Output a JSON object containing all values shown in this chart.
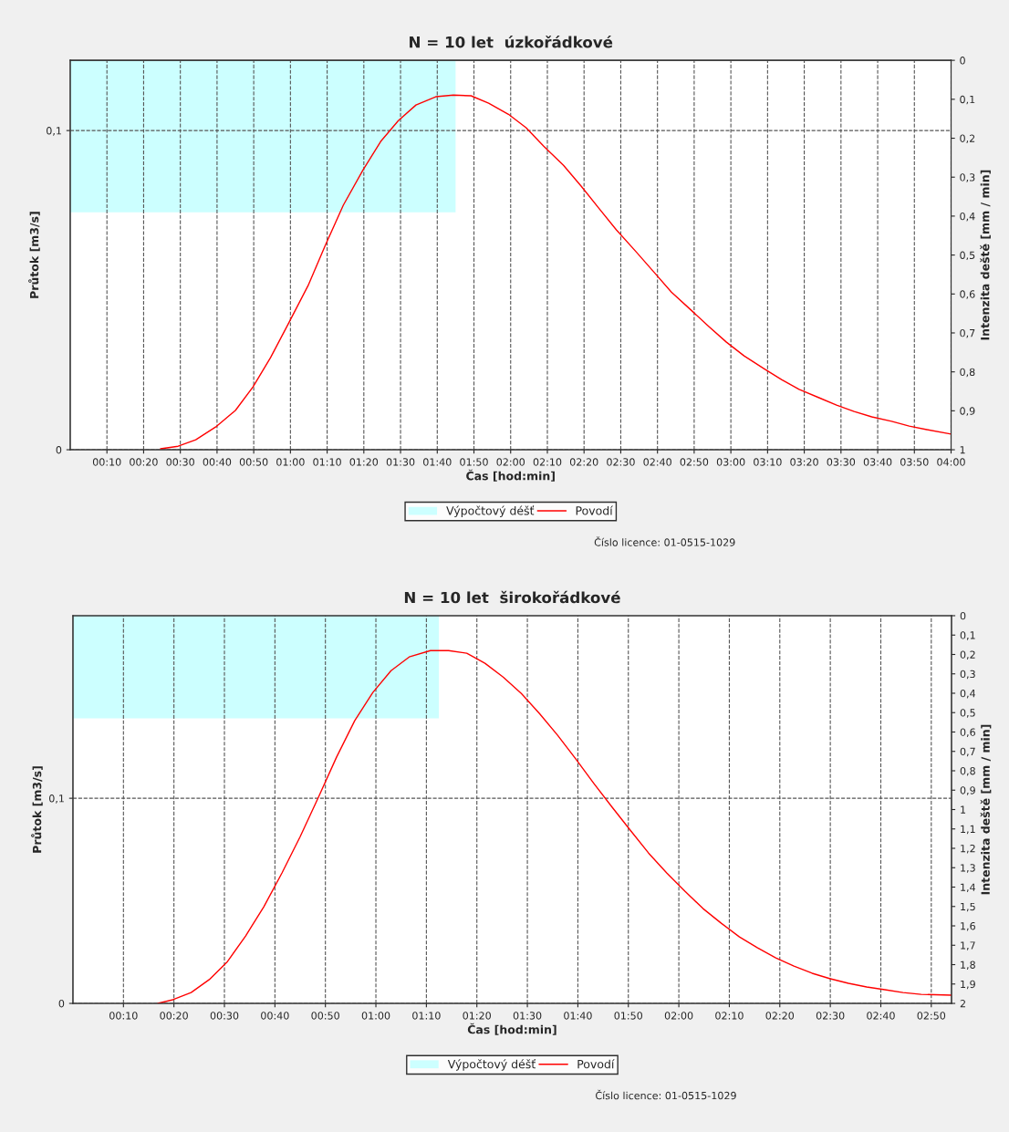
{
  "chart_data": [
    {
      "type": "line",
      "title": "N = 10 let  úzkořádkové",
      "xlabel": "Čas [hod:min]",
      "ylabel": "Průtok [m3/s]",
      "y2label": "Intenzita deště [mm / min]",
      "xlim": [
        0,
        4
      ],
      "ylim": [
        0,
        0.122
      ],
      "y2lim": [
        1,
        0
      ],
      "xticks": [
        {
          "value": 0.1667,
          "label": "00:10"
        },
        {
          "value": 0.3333,
          "label": "00:20"
        },
        {
          "value": 0.5,
          "label": "00:30"
        },
        {
          "value": 0.6667,
          "label": "00:40"
        },
        {
          "value": 0.8333,
          "label": "00:50"
        },
        {
          "value": 1,
          "label": "01:00"
        },
        {
          "value": 1.1667,
          "label": "01:10"
        },
        {
          "value": 1.3333,
          "label": "01:20"
        },
        {
          "value": 1.5,
          "label": "01:30"
        },
        {
          "value": 1.6667,
          "label": "01:40"
        },
        {
          "value": 1.8333,
          "label": "01:50"
        },
        {
          "value": 2,
          "label": "02:00"
        },
        {
          "value": 2.1667,
          "label": "02:10"
        },
        {
          "value": 2.3333,
          "label": "02:20"
        },
        {
          "value": 2.5,
          "label": "02:30"
        },
        {
          "value": 2.6667,
          "label": "02:40"
        },
        {
          "value": 2.8333,
          "label": "02:50"
        },
        {
          "value": 3,
          "label": "03:00"
        },
        {
          "value": 3.1667,
          "label": "03:10"
        },
        {
          "value": 3.3333,
          "label": "03:20"
        },
        {
          "value": 3.5,
          "label": "03:30"
        },
        {
          "value": 3.6667,
          "label": "03:40"
        },
        {
          "value": 3.8333,
          "label": "03:50"
        },
        {
          "value": 4,
          "label": "04:00"
        }
      ],
      "yticks": [
        0,
        {
          "value": 0.1,
          "label": "0,1"
        }
      ],
      "y2ticks": [
        0,
        {
          "value": 0.1,
          "label": "0,1"
        },
        {
          "value": 0.2,
          "label": "0,2"
        },
        {
          "value": 0.3,
          "label": "0,3"
        },
        {
          "value": 0.4,
          "label": "0,4"
        },
        {
          "value": 0.5,
          "label": "0,5"
        },
        {
          "value": 0.6,
          "label": "0,6"
        },
        {
          "value": 0.7,
          "label": "0,7"
        },
        {
          "value": 0.8,
          "label": "0,8"
        },
        {
          "value": 0.9,
          "label": "0,9"
        },
        1
      ],
      "grid": true,
      "legend": "bottom",
      "line_style": "solid",
      "marker": "none",
      "annotations": [
        "Číslo licence: 01-0515-1029"
      ],
      "series": [
        {
          "name": "Výpočtový déšť",
          "type": "area",
          "axis": "y2",
          "color": "#ccffff",
          "x": [
            0,
            1.75
          ],
          "values": [
            0.39,
            0.39
          ]
        },
        {
          "name": "Povodí",
          "color": "#ff0000",
          "x": [
            0.41,
            0.49,
            0.57,
            0.66,
            0.75,
            0.83,
            0.91,
            0.99,
            1.08,
            1.16,
            1.24,
            1.33,
            1.41,
            1.49,
            1.57,
            1.66,
            1.74,
            1.82,
            1.9,
            1.99,
            2.07,
            2.15,
            2.24,
            2.32,
            2.4,
            2.48,
            2.57,
            2.65,
            2.73,
            2.82,
            2.9,
            2.98,
            3.06,
            3.15,
            3.23,
            3.31,
            3.4,
            3.48,
            3.56,
            3.64,
            3.73,
            3.81,
            3.89,
            4.0
          ],
          "values": [
            0.0003,
            0.0011,
            0.0031,
            0.0071,
            0.0123,
            0.0197,
            0.0289,
            0.0394,
            0.0514,
            0.0643,
            0.0766,
            0.0877,
            0.0966,
            0.1031,
            0.108,
            0.1106,
            0.1111,
            0.1109,
            0.1086,
            0.1051,
            0.1009,
            0.0951,
            0.0891,
            0.0826,
            0.0757,
            0.0689,
            0.062,
            0.0557,
            0.0494,
            0.0437,
            0.0386,
            0.0337,
            0.0294,
            0.0254,
            0.022,
            0.0189,
            0.0163,
            0.014,
            0.012,
            0.0103,
            0.0089,
            0.0074,
            0.0063,
            0.0049
          ]
        }
      ]
    },
    {
      "type": "line",
      "title": "N = 10 let  širokořádkové",
      "xlabel": "Čas [hod:min]",
      "ylabel": "Průtok [m3/s]",
      "y2label": "Intenzita deště [mm / min]",
      "xlim": [
        0,
        2.9
      ],
      "ylim": [
        0,
        0.189
      ],
      "y2lim": [
        2,
        0
      ],
      "xticks": [
        {
          "value": 0.1667,
          "label": "00:10"
        },
        {
          "value": 0.3333,
          "label": "00:20"
        },
        {
          "value": 0.5,
          "label": "00:30"
        },
        {
          "value": 0.6667,
          "label": "00:40"
        },
        {
          "value": 0.8333,
          "label": "00:50"
        },
        {
          "value": 1,
          "label": "01:00"
        },
        {
          "value": 1.1667,
          "label": "01:10"
        },
        {
          "value": 1.3333,
          "label": "01:20"
        },
        {
          "value": 1.5,
          "label": "01:30"
        },
        {
          "value": 1.6667,
          "label": "01:40"
        },
        {
          "value": 1.8333,
          "label": "01:50"
        },
        {
          "value": 2,
          "label": "02:00"
        },
        {
          "value": 2.1667,
          "label": "02:10"
        },
        {
          "value": 2.3333,
          "label": "02:20"
        },
        {
          "value": 2.5,
          "label": "02:30"
        },
        {
          "value": 2.6667,
          "label": "02:40"
        },
        {
          "value": 2.8333,
          "label": "02:50"
        }
      ],
      "yticks": [
        0,
        {
          "value": 0.1,
          "label": "0,1"
        }
      ],
      "y2ticks": [
        0,
        {
          "value": 0.1,
          "label": "0,1"
        },
        {
          "value": 0.2,
          "label": "0,2"
        },
        {
          "value": 0.3,
          "label": "0,3"
        },
        {
          "value": 0.4,
          "label": "0,4"
        },
        {
          "value": 0.5,
          "label": "0,5"
        },
        {
          "value": 0.6,
          "label": "0,6"
        },
        {
          "value": 0.7,
          "label": "0,7"
        },
        {
          "value": 0.8,
          "label": "0,8"
        },
        {
          "value": 0.9,
          "label": "0,9"
        },
        1,
        {
          "value": 1.1,
          "label": "1,1"
        },
        {
          "value": 1.2,
          "label": "1,2"
        },
        {
          "value": 1.3,
          "label": "1,3"
        },
        {
          "value": 1.4,
          "label": "1,4"
        },
        {
          "value": 1.5,
          "label": "1,5"
        },
        {
          "value": 1.6,
          "label": "1,6"
        },
        {
          "value": 1.7,
          "label": "1,7"
        },
        {
          "value": 1.8,
          "label": "1,8"
        },
        {
          "value": 1.9,
          "label": "1,9"
        },
        2
      ],
      "grid": true,
      "legend": "bottom",
      "line_style": "solid",
      "marker": "none",
      "annotations": [
        "Číslo licence: 01-0515-1029"
      ],
      "series": [
        {
          "name": "Výpočtový déšť",
          "type": "area",
          "axis": "y2",
          "color": "#ccffff",
          "x": [
            0,
            1.208
          ],
          "values": [
            0.53,
            0.53
          ]
        },
        {
          "name": "Povodí",
          "color": "#ff0000",
          "x": [
            0.28,
            0.33,
            0.39,
            0.45,
            0.51,
            0.57,
            0.63,
            0.69,
            0.75,
            0.81,
            0.87,
            0.93,
            0.99,
            1.05,
            1.11,
            1.18,
            1.24,
            1.3,
            1.36,
            1.42,
            1.48,
            1.54,
            1.6,
            1.66,
            1.72,
            1.78,
            1.84,
            1.9,
            1.96,
            2.02,
            2.08,
            2.14,
            2.2,
            2.26,
            2.32,
            2.38,
            2.44,
            2.5,
            2.56,
            2.62,
            2.68,
            2.74,
            2.8,
            2.9
          ],
          "values": [
            0.0,
            0.0018,
            0.0053,
            0.0116,
            0.0204,
            0.0329,
            0.0471,
            0.0636,
            0.0813,
            0.1004,
            0.12,
            0.1378,
            0.1516,
            0.1622,
            0.1689,
            0.172,
            0.172,
            0.1707,
            0.1658,
            0.1591,
            0.1511,
            0.1413,
            0.1307,
            0.1191,
            0.1071,
            0.0956,
            0.0844,
            0.0733,
            0.0636,
            0.0547,
            0.0462,
            0.0391,
            0.0324,
            0.0271,
            0.0222,
            0.0182,
            0.0147,
            0.012,
            0.0098,
            0.008,
            0.0067,
            0.0053,
            0.0044,
            0.004
          ]
        }
      ]
    }
  ]
}
